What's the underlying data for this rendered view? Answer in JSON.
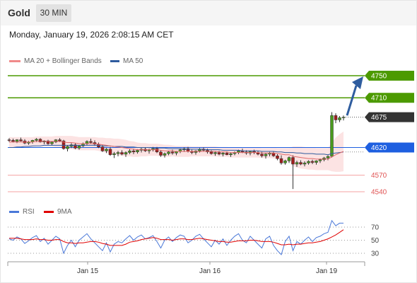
{
  "header": {
    "symbol": "Gold",
    "timeframe": "30 MIN"
  },
  "datetime": "Monday, January 19, 2026 2:08:15 AM CET",
  "legend": {
    "ma20": {
      "label": "MA 20 + Bollinger Bands",
      "color": "#f08a8a"
    },
    "ma50": {
      "label": "MA 50",
      "color": "#2e5b9e"
    }
  },
  "rsi_legend": {
    "rsi": {
      "label": "RSI",
      "color": "#4a78d8"
    },
    "ma9": {
      "label": "9MA",
      "color": "#e00000"
    }
  },
  "price_levels": {
    "resistance_2": {
      "label": "4750",
      "value": 4750,
      "color": "#4c9a00"
    },
    "resistance_1": {
      "label": "4710",
      "value": 4710,
      "color": "#4c9a00"
    },
    "current": {
      "label": "4675",
      "value": 4675,
      "color": "#333333"
    },
    "pivot": {
      "label": "4620",
      "value": 4620,
      "color": "#1e5fe0"
    },
    "support_1": {
      "label": "4570",
      "value": 4570,
      "color": "#e05555"
    },
    "support_2": {
      "label": "4540",
      "value": 4540,
      "color": "#e05555"
    }
  },
  "rsi_levels": [
    "70",
    "50",
    "30"
  ],
  "x_labels": [
    "Jan 15",
    "Jan 16",
    "Jan 19"
  ],
  "chart_data": {
    "type": "candlestick",
    "yaxis_levels": [
      4750,
      4710,
      4675,
      4620,
      4570,
      4540
    ],
    "ohlc": [
      [
        4634,
        4637,
        4630,
        4633
      ],
      [
        4633,
        4636,
        4629,
        4631
      ],
      [
        4631,
        4635,
        4628,
        4634
      ],
      [
        4634,
        4638,
        4631,
        4632
      ],
      [
        4632,
        4635,
        4626,
        4628
      ],
      [
        4628,
        4632,
        4625,
        4630
      ],
      [
        4630,
        4634,
        4627,
        4633
      ],
      [
        4633,
        4637,
        4630,
        4635
      ],
      [
        4635,
        4637,
        4629,
        4630
      ],
      [
        4630,
        4633,
        4626,
        4632
      ],
      [
        4632,
        4634,
        4625,
        4627
      ],
      [
        4627,
        4631,
        4624,
        4630
      ],
      [
        4630,
        4635,
        4628,
        4634
      ],
      [
        4634,
        4637,
        4630,
        4632
      ],
      [
        4632,
        4634,
        4616,
        4618
      ],
      [
        4618,
        4624,
        4613,
        4622
      ],
      [
        4622,
        4628,
        4619,
        4625
      ],
      [
        4625,
        4628,
        4617,
        4619
      ],
      [
        4619,
        4624,
        4616,
        4623
      ],
      [
        4623,
        4629,
        4621,
        4627
      ],
      [
        4627,
        4633,
        4624,
        4631
      ],
      [
        4631,
        4636,
        4627,
        4629
      ],
      [
        4629,
        4633,
        4623,
        4626
      ],
      [
        4626,
        4629,
        4619,
        4621
      ],
      [
        4621,
        4625,
        4612,
        4614
      ],
      [
        4614,
        4619,
        4610,
        4617
      ],
      [
        4617,
        4621,
        4605,
        4607
      ],
      [
        4607,
        4612,
        4601,
        4609
      ],
      [
        4609,
        4614,
        4604,
        4611
      ],
      [
        4611,
        4615,
        4606,
        4608
      ],
      [
        4608,
        4613,
        4603,
        4611
      ],
      [
        4611,
        4617,
        4608,
        4614
      ],
      [
        4614,
        4618,
        4608,
        4612
      ],
      [
        4612,
        4617,
        4609,
        4615
      ],
      [
        4615,
        4619,
        4611,
        4617
      ],
      [
        4617,
        4620,
        4612,
        4614
      ],
      [
        4614,
        4618,
        4609,
        4616
      ],
      [
        4616,
        4621,
        4613,
        4618
      ],
      [
        4618,
        4621,
        4610,
        4612
      ],
      [
        4612,
        4615,
        4603,
        4606
      ],
      [
        4606,
        4611,
        4602,
        4609
      ],
      [
        4609,
        4614,
        4606,
        4612
      ],
      [
        4612,
        4616,
        4607,
        4610
      ],
      [
        4610,
        4614,
        4606,
        4613
      ],
      [
        4613,
        4618,
        4610,
        4616
      ],
      [
        4616,
        4620,
        4612,
        4618
      ],
      [
        4618,
        4621,
        4611,
        4613
      ],
      [
        4613,
        4616,
        4608,
        4611
      ],
      [
        4611,
        4615,
        4607,
        4614
      ],
      [
        4614,
        4619,
        4611,
        4617
      ],
      [
        4617,
        4620,
        4613,
        4615
      ],
      [
        4615,
        4618,
        4609,
        4612
      ],
      [
        4612,
        4615,
        4607,
        4609
      ],
      [
        4609,
        4613,
        4605,
        4611
      ],
      [
        4611,
        4614,
        4606,
        4608
      ],
      [
        4608,
        4612,
        4604,
        4610
      ],
      [
        4610,
        4613,
        4606,
        4607
      ],
      [
        4607,
        4611,
        4603,
        4609
      ],
      [
        4609,
        4613,
        4606,
        4611
      ],
      [
        4611,
        4616,
        4608,
        4614
      ],
      [
        4614,
        4618,
        4610,
        4612
      ],
      [
        4612,
        4615,
        4607,
        4610
      ],
      [
        4610,
        4614,
        4606,
        4613
      ],
      [
        4613,
        4616,
        4608,
        4611
      ],
      [
        4611,
        4614,
        4606,
        4608
      ],
      [
        4608,
        4612,
        4602,
        4605
      ],
      [
        4605,
        4610,
        4600,
        4608
      ],
      [
        4608,
        4612,
        4604,
        4610
      ],
      [
        4610,
        4613,
        4603,
        4605
      ],
      [
        4605,
        4608,
        4597,
        4600
      ],
      [
        4600,
        4606,
        4589,
        4592
      ],
      [
        4592,
        4598,
        4589,
        4596
      ],
      [
        4596,
        4604,
        4592,
        4602
      ],
      [
        4602,
        4606,
        4545,
        4590
      ],
      [
        4590,
        4596,
        4585,
        4593
      ],
      [
        4593,
        4597,
        4588,
        4590
      ],
      [
        4590,
        4595,
        4586,
        4592
      ],
      [
        4592,
        4597,
        4589,
        4595
      ],
      [
        4595,
        4598,
        4590,
        4593
      ],
      [
        4593,
        4597,
        4589,
        4596
      ],
      [
        4596,
        4600,
        4592,
        4598
      ],
      [
        4598,
        4603,
        4595,
        4601
      ],
      [
        4601,
        4606,
        4597,
        4604
      ],
      [
        4604,
        4684,
        4602,
        4678
      ],
      [
        4678,
        4682,
        4664,
        4670
      ],
      [
        4670,
        4677,
        4666,
        4674
      ],
      [
        4674,
        4678,
        4669,
        4675
      ]
    ],
    "ma20": [
      4630,
      4630,
      4630,
      4630,
      4630,
      4630,
      4630,
      4631,
      4631,
      4631,
      4631,
      4631,
      4631,
      4631,
      4630,
      4629,
      4629,
      4628,
      4627,
      4627,
      4627,
      4627,
      4627,
      4626,
      4625,
      4624,
      4623,
      4622,
      4621,
      4620,
      4619,
      4618,
      4617,
      4616,
      4616,
      4616,
      4616,
      4616,
      4616,
      4615,
      4614,
      4614,
      4614,
      4613,
      4613,
      4613,
      4613,
      4613,
      4613,
      4613,
      4613,
      4613,
      4613,
      4613,
      4612,
      4612,
      4612,
      4611,
      4611,
      4611,
      4611,
      4611,
      4611,
      4611,
      4611,
      4610,
      4610,
      4610,
      4610,
      4609,
      4608,
      4607,
      4607,
      4604,
      4603,
      4602,
      4601,
      4600,
      4600,
      4599,
      4599,
      4599,
      4599,
      4603,
      4607,
      4610,
      4613
    ],
    "ma50": [
      4620,
      4620,
      4621,
      4621,
      4622,
      4622,
      4623,
      4623,
      4623,
      4624,
      4624,
      4624,
      4624,
      4624,
      4624,
      4624,
      4624,
      4624,
      4624,
      4624,
      4624,
      4624,
      4624,
      4624,
      4623,
      4623,
      4623,
      4622,
      4622,
      4622,
      4621,
      4621,
      4621,
      4620,
      4620,
      4620,
      4620,
      4619,
      4619,
      4619,
      4619,
      4618,
      4618,
      4618,
      4618,
      4617,
      4617,
      4617,
      4617,
      4617,
      4617,
      4616,
      4616,
      4616,
      4616,
      4615,
      4615,
      4615,
      4615,
      4615,
      4614,
      4614,
      4614,
      4614,
      4614,
      4613,
      4613,
      4613,
      4613,
      4612,
      4612,
      4611,
      4611,
      4611,
      4610,
      4610,
      4609,
      4609,
      4609,
      4608,
      4608,
      4608,
      4607,
      4609,
      4610,
      4611,
      4612
    ],
    "bb_width": [
      9,
      9,
      9,
      9,
      9,
      9,
      9,
      9,
      9,
      9,
      9,
      9,
      10,
      10,
      11,
      12,
      12,
      12,
      12,
      12,
      12,
      12,
      12,
      12,
      13,
      13,
      14,
      14,
      15,
      15,
      15,
      14,
      14,
      13,
      12,
      12,
      11,
      11,
      11,
      11,
      11,
      11,
      10,
      10,
      10,
      10,
      10,
      9,
      9,
      9,
      9,
      9,
      9,
      9,
      9,
      9,
      9,
      9,
      9,
      9,
      9,
      9,
      9,
      9,
      9,
      9,
      9,
      9,
      10,
      10,
      11,
      12,
      12,
      18,
      19,
      20,
      20,
      20,
      20,
      20,
      20,
      20,
      20,
      26,
      31,
      34,
      36
    ],
    "rsi": [
      52,
      50,
      55,
      52,
      45,
      49,
      54,
      57,
      48,
      53,
      44,
      50,
      56,
      52,
      30,
      42,
      50,
      40,
      50,
      55,
      60,
      52,
      46,
      40,
      34,
      46,
      32,
      44,
      48,
      46,
      52,
      57,
      50,
      55,
      58,
      52,
      54,
      57,
      48,
      38,
      50,
      55,
      48,
      54,
      58,
      56,
      46,
      50,
      56,
      59,
      52,
      46,
      40,
      50,
      44,
      52,
      42,
      50,
      56,
      60,
      50,
      46,
      56,
      50,
      44,
      38,
      52,
      56,
      42,
      34,
      28,
      48,
      56,
      34,
      48,
      44,
      50,
      55,
      48,
      54,
      56,
      60,
      62,
      80,
      72,
      76,
      76
    ],
    "rsi_ma": [
      53,
      53,
      53,
      52,
      51,
      51,
      51,
      52,
      51,
      51,
      50,
      50,
      51,
      51,
      48,
      46,
      46,
      45,
      46,
      46,
      47,
      48,
      48,
      47,
      45,
      44,
      42,
      42,
      42,
      42,
      44,
      47,
      48,
      49,
      51,
      52,
      53,
      54,
      53,
      51,
      51,
      51,
      50,
      51,
      52,
      52,
      51,
      51,
      52,
      53,
      52,
      51,
      50,
      49,
      48,
      48,
      47,
      47,
      48,
      49,
      49,
      49,
      50,
      50,
      49,
      48,
      48,
      48,
      47,
      45,
      43,
      43,
      44,
      43,
      44,
      44,
      45,
      46,
      46,
      47,
      48,
      50,
      52,
      55,
      58,
      62,
      66
    ],
    "rsi_levels": [
      70,
      50,
      30
    ]
  }
}
